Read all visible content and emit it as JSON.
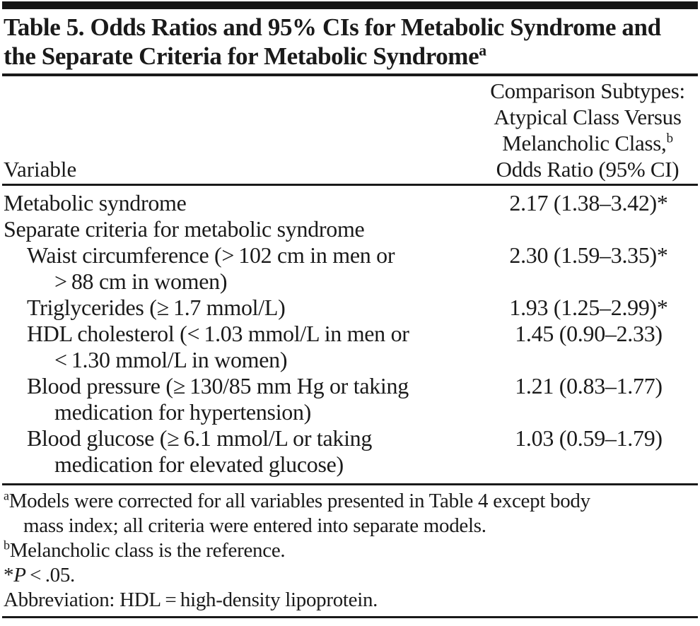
{
  "table": {
    "title": {
      "line1": "Table 5. Odds Ratios and 95% CIs for Metabolic Syndrome and",
      "line2": "the Separate Criteria for Metabolic Syndrome",
      "sup": "a"
    },
    "header": {
      "variable": "Variable",
      "comparison": {
        "line1": "Comparison Subtypes:",
        "line2": "Atypical Class Versus",
        "line3": "Melancholic Class,",
        "line3_sup": "b",
        "line4": "Odds Ratio (95% CI)"
      }
    },
    "rows": [
      {
        "line1": "Metabolic syndrome",
        "value": "2.17 (1.38–3.42)*"
      },
      {
        "line1": "Separate criteria for metabolic syndrome",
        "value": ""
      },
      {
        "line1": "Waist circumference (> 102 cm in men or",
        "line2": "> 88 cm in women)",
        "value": "2.30 (1.59–3.35)*"
      },
      {
        "line1": "Triglycerides (≥ 1.7 mmol/L)",
        "value": "1.93 (1.25–2.99)*"
      },
      {
        "line1": "HDL cholesterol (< 1.03 mmol/L in men or",
        "line2": "< 1.30 mmol/L in women)",
        "value": "1.45 (0.90–2.33)"
      },
      {
        "line1": "Blood pressure (≥ 130/85 mm Hg or taking",
        "line2": "medication for hypertension)",
        "value": "1.21 (0.83–1.77)"
      },
      {
        "line1": "Blood glucose (≥ 6.1 mmol/L or taking",
        "line2": "medication for elevated glucose)",
        "value": "1.03 (0.59–1.79)"
      }
    ],
    "footnotes": {
      "a_sup": "a",
      "a_line1": "Models were corrected for all variables presented in Table 4 except body",
      "a_line2": "mass index; all criteria were entered into separate models.",
      "b_sup": "b",
      "b_text": "Melancholic class is the reference.",
      "star_marker": "*",
      "star_p": "P",
      "star_rest": " < .05.",
      "abbreviation": "Abbreviation: HDL = high-density lipoprotein."
    },
    "colors": {
      "text": "#1a1a1a",
      "rule": "#191919",
      "background": "#ffffff"
    }
  }
}
